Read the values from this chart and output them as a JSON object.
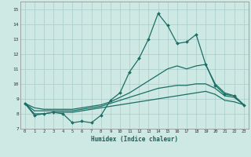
{
  "xlabel": "Humidex (Indice chaleur)",
  "xlim": [
    -0.5,
    23.5
  ],
  "ylim": [
    7,
    15.5
  ],
  "yticks": [
    7,
    8,
    9,
    10,
    11,
    12,
    13,
    14,
    15
  ],
  "xticks": [
    0,
    1,
    2,
    3,
    4,
    5,
    6,
    7,
    8,
    9,
    10,
    11,
    12,
    13,
    14,
    15,
    16,
    17,
    18,
    19,
    20,
    21,
    22,
    23
  ],
  "background_color": "#cee9e4",
  "grid_color": "#aaccca",
  "line_color": "#1a6e64",
  "series": {
    "line1_volatile": [
      8.7,
      7.9,
      8.0,
      8.1,
      8.0,
      7.4,
      7.5,
      7.4,
      7.9,
      8.9,
      9.4,
      10.8,
      11.7,
      13.0,
      14.7,
      13.9,
      12.7,
      12.8,
      13.3,
      11.3,
      9.9,
      9.3,
      9.2,
      8.6
    ],
    "line2_upper": [
      8.7,
      8.4,
      8.3,
      8.3,
      8.3,
      8.3,
      8.4,
      8.5,
      8.6,
      8.8,
      9.1,
      9.4,
      9.8,
      10.2,
      10.6,
      11.0,
      11.2,
      11.0,
      11.2,
      11.3,
      10.0,
      9.4,
      9.2,
      8.6
    ],
    "line3_mid": [
      8.7,
      8.2,
      8.2,
      8.2,
      8.2,
      8.2,
      8.3,
      8.4,
      8.5,
      8.7,
      8.9,
      9.1,
      9.3,
      9.5,
      9.7,
      9.8,
      9.9,
      9.9,
      10.0,
      10.0,
      9.7,
      9.2,
      9.1,
      8.6
    ],
    "line4_lower": [
      8.7,
      8.0,
      8.0,
      8.1,
      8.1,
      8.1,
      8.2,
      8.3,
      8.4,
      8.5,
      8.6,
      8.7,
      8.8,
      8.9,
      9.0,
      9.1,
      9.2,
      9.3,
      9.4,
      9.5,
      9.3,
      8.9,
      8.8,
      8.6
    ]
  }
}
